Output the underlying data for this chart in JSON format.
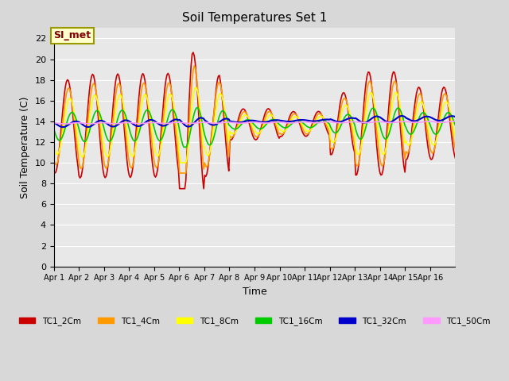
{
  "title": "Soil Temperatures Set 1",
  "xlabel": "Time",
  "ylabel": "Soil Temperature (C)",
  "ylim": [
    0,
    23
  ],
  "yticks": [
    0,
    2,
    4,
    6,
    8,
    10,
    12,
    14,
    16,
    18,
    20,
    22
  ],
  "annotation_text": "SI_met",
  "bg_color": "#d8d8d8",
  "plot_bg": "#e8e8e8",
  "series": {
    "TC1_2Cm": {
      "color": "#cc0000",
      "lw": 1.2
    },
    "TC1_4Cm": {
      "color": "#ff9900",
      "lw": 1.2
    },
    "TC1_8Cm": {
      "color": "#ffff00",
      "lw": 1.2
    },
    "TC1_16Cm": {
      "color": "#00cc00",
      "lw": 1.2
    },
    "TC1_32Cm": {
      "color": "#0000cc",
      "lw": 1.5
    },
    "TC1_50Cm": {
      "color": "#ff99ff",
      "lw": 1.2
    }
  },
  "xtick_labels": [
    "Apr 1",
    "Apr 2",
    "Apr 3",
    "Apr 4",
    "Apr 5",
    "Apr 6",
    "Apr 7",
    "Apr 8",
    "Apr 9",
    "Apr 10",
    "Apr 11",
    "Apr 12",
    "Apr 13",
    "Apr 14",
    "Apr 15",
    "Apr 16"
  ],
  "n_days": 16,
  "pts_per_day": 24
}
